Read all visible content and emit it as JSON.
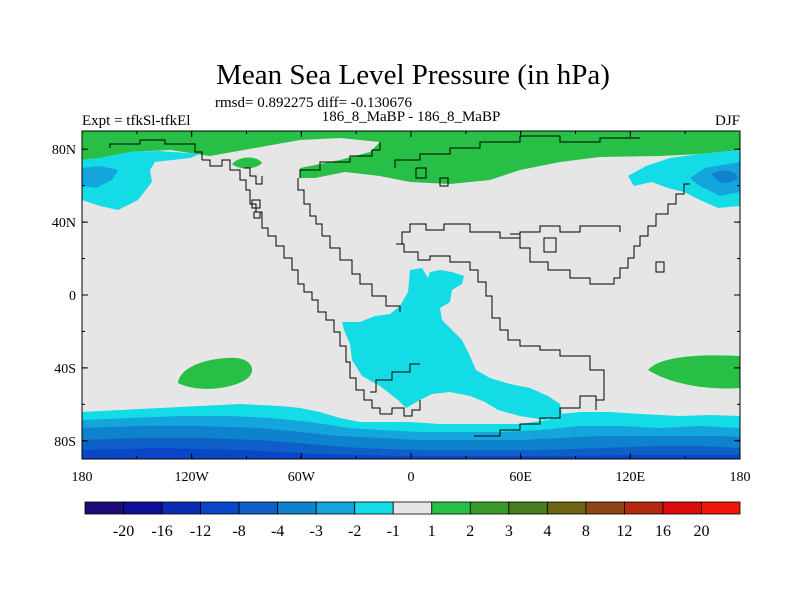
{
  "chart_data": {
    "type": "heatmap",
    "title": "Mean Sea Level Pressure (in hPa)",
    "stats_label": "rmsd= 0.892275 diff= -0.130676",
    "left_label": "Expt = tfkSl-tfkEl",
    "center_label": "186_8_MaBP - 186_8_MaBP",
    "right_label": "DJF",
    "x_ticks": [
      "180",
      "120W",
      "60W",
      "0",
      "60E",
      "120E",
      "180"
    ],
    "y_ticks": [
      "80N",
      "40N",
      "0",
      "40S",
      "80S"
    ],
    "x_range": [
      -180,
      180
    ],
    "y_range": [
      -90,
      90
    ],
    "colorbar": {
      "labels": [
        "-20",
        "-16",
        "-12",
        "-8",
        "-4",
        "-3",
        "-2",
        "-1",
        "1",
        "2",
        "3",
        "4",
        "8",
        "12",
        "16",
        "20"
      ],
      "colors": [
        "#1e0a78",
        "#0f0f9a",
        "#0a2db4",
        "#0a46c8",
        "#0f5fc8",
        "#0f82cd",
        "#14a5dc",
        "#14dce6",
        "#e6e6e6",
        "#28bf46",
        "#3c9a28",
        "#467d1e",
        "#6e6414",
        "#8c4614",
        "#b4280f",
        "#dc0a0a",
        "#f0140a"
      ]
    },
    "regions": [
      {
        "name": "arctic-positive-band",
        "level": "2",
        "color": "#28bf46"
      },
      {
        "name": "north-pacific-negative",
        "level": "-2",
        "color": "#14dce6"
      },
      {
        "name": "north-pacific-core-negative",
        "level": "-3",
        "color": "#14a5dc"
      },
      {
        "name": "siberia-pacific-negative",
        "level": "-2",
        "color": "#14dce6"
      },
      {
        "name": "tethys-southern-negative",
        "level": "-2",
        "color": "#14dce6"
      },
      {
        "name": "south-pacific-positive",
        "level": "2",
        "color": "#28bf46"
      },
      {
        "name": "south-indian-positive",
        "level": "2",
        "color": "#28bf46"
      },
      {
        "name": "southern-ocean-negative",
        "level": "-2 to -8",
        "color": "#0f82cd"
      }
    ]
  }
}
